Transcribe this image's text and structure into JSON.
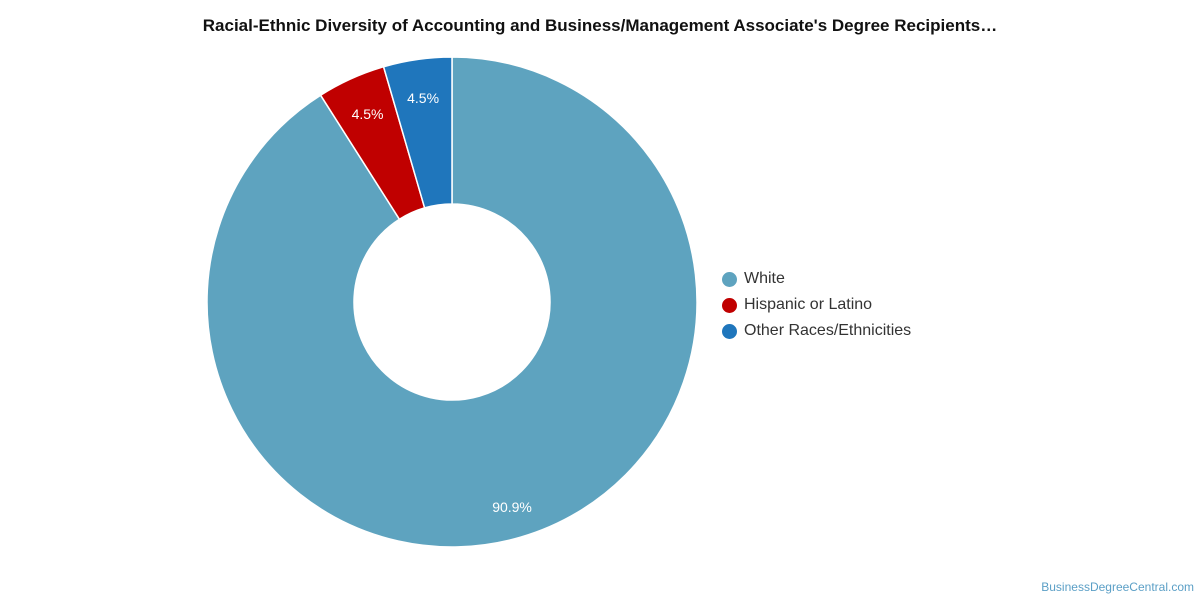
{
  "chart_data": {
    "type": "pie",
    "variant": "donut",
    "title": "Racial-Ethnic Diversity of Accounting and Business/Management Associate's Degree Recipients…",
    "series": [
      {
        "name": "White",
        "value": 90.9,
        "label": "90.9%",
        "color": "#5ea3bf"
      },
      {
        "name": "Hispanic or Latino",
        "value": 4.5,
        "label": "4.5%",
        "color": "#c00000"
      },
      {
        "name": "Other Races/Ethnicities",
        "value": 4.5,
        "label": "4.5%",
        "color": "#1f76bc"
      }
    ],
    "legend_position": "right"
  },
  "watermark": "BusinessDegreeCentral.com"
}
